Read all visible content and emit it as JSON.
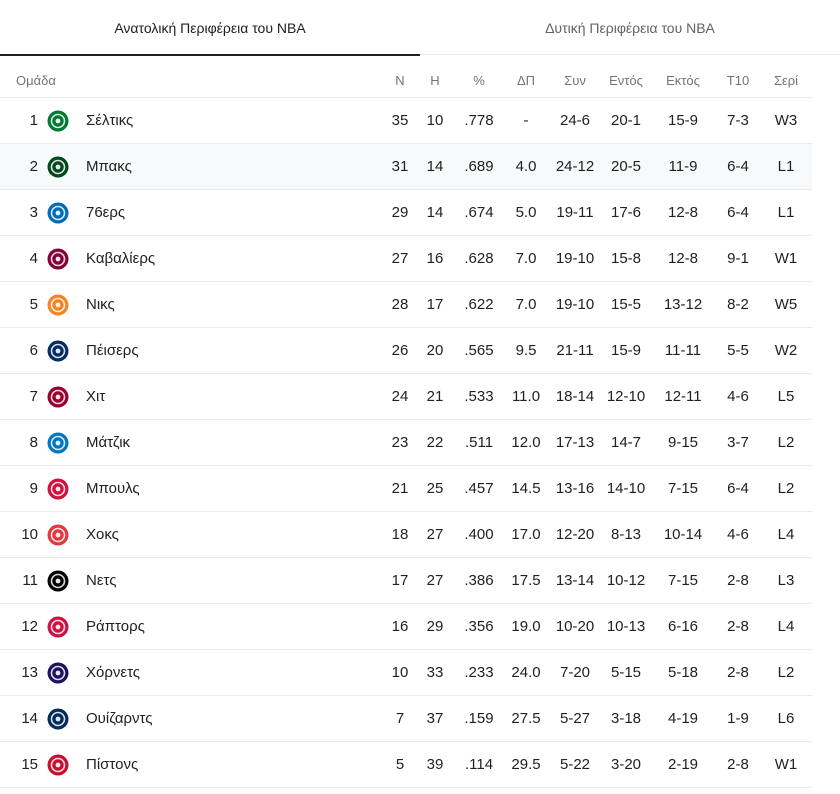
{
  "tabs": [
    {
      "label": "Ανατολική Περιφέρεια του NBA"
    },
    {
      "label": "Δυτική Περιφέρεια του NBA"
    }
  ],
  "columns": {
    "team": "Ομάδα",
    "n": "Ν",
    "h": "Η",
    "pct": "%",
    "dp": "ΔΠ",
    "syn": "Συν",
    "entos": "Εντός",
    "ektos": "Εκτός",
    "t10": "Τ10",
    "seri": "Σερί"
  },
  "teams": [
    {
      "rank": "1",
      "name": "Σέλτικς",
      "logo": "celtics-logo-icon",
      "color": "#007a33",
      "n": "35",
      "h": "10",
      "pct": ".778",
      "dp": "-",
      "syn": "24-6",
      "entos": "20-1",
      "ektos": "15-9",
      "t10": "7-3",
      "seri": "W3"
    },
    {
      "rank": "2",
      "name": "Μπακς",
      "logo": "bucks-logo-icon",
      "color": "#00471b",
      "n": "31",
      "h": "14",
      "pct": ".689",
      "dp": "4.0",
      "syn": "24-12",
      "entos": "20-5",
      "ektos": "11-9",
      "t10": "6-4",
      "seri": "L1"
    },
    {
      "rank": "3",
      "name": "76ερς",
      "logo": "76ers-logo-icon",
      "color": "#006bb6",
      "n": "29",
      "h": "14",
      "pct": ".674",
      "dp": "5.0",
      "syn": "19-11",
      "entos": "17-6",
      "ektos": "12-8",
      "t10": "6-4",
      "seri": "L1"
    },
    {
      "rank": "4",
      "name": "Καβαλίερς",
      "logo": "cavaliers-logo-icon",
      "color": "#860038",
      "n": "27",
      "h": "16",
      "pct": ".628",
      "dp": "7.0",
      "syn": "19-10",
      "entos": "15-8",
      "ektos": "12-8",
      "t10": "9-1",
      "seri": "W1"
    },
    {
      "rank": "5",
      "name": "Νικς",
      "logo": "knicks-logo-icon",
      "color": "#f58426",
      "n": "28",
      "h": "17",
      "pct": ".622",
      "dp": "7.0",
      "syn": "19-10",
      "entos": "15-5",
      "ektos": "13-12",
      "t10": "8-2",
      "seri": "W5"
    },
    {
      "rank": "6",
      "name": "Πέισερς",
      "logo": "pacers-logo-icon",
      "color": "#002d62",
      "n": "26",
      "h": "20",
      "pct": ".565",
      "dp": "9.5",
      "syn": "21-11",
      "entos": "15-9",
      "ektos": "11-11",
      "t10": "5-5",
      "seri": "W2"
    },
    {
      "rank": "7",
      "name": "Χιτ",
      "logo": "heat-logo-icon",
      "color": "#98002e",
      "n": "24",
      "h": "21",
      "pct": ".533",
      "dp": "11.0",
      "syn": "18-14",
      "entos": "12-10",
      "ektos": "12-11",
      "t10": "4-6",
      "seri": "L5"
    },
    {
      "rank": "8",
      "name": "Μάτζικ",
      "logo": "magic-logo-icon",
      "color": "#0077c0",
      "n": "23",
      "h": "22",
      "pct": ".511",
      "dp": "12.0",
      "syn": "17-13",
      "entos": "14-7",
      "ektos": "9-15",
      "t10": "3-7",
      "seri": "L2"
    },
    {
      "rank": "9",
      "name": "Μπουλς",
      "logo": "bulls-logo-icon",
      "color": "#ce1141",
      "n": "21",
      "h": "25",
      "pct": ".457",
      "dp": "14.5",
      "syn": "13-16",
      "entos": "14-10",
      "ektos": "7-15",
      "t10": "6-4",
      "seri": "L2"
    },
    {
      "rank": "10",
      "name": "Χοκς",
      "logo": "hawks-logo-icon",
      "color": "#e03a3e",
      "n": "18",
      "h": "27",
      "pct": ".400",
      "dp": "17.0",
      "syn": "12-20",
      "entos": "8-13",
      "ektos": "10-14",
      "t10": "4-6",
      "seri": "L4"
    },
    {
      "rank": "11",
      "name": "Νετς",
      "logo": "nets-logo-icon",
      "color": "#000000",
      "n": "17",
      "h": "27",
      "pct": ".386",
      "dp": "17.5",
      "syn": "13-14",
      "entos": "10-12",
      "ektos": "7-15",
      "t10": "2-8",
      "seri": "L3"
    },
    {
      "rank": "12",
      "name": "Ράπτορς",
      "logo": "raptors-logo-icon",
      "color": "#ce1141",
      "n": "16",
      "h": "29",
      "pct": ".356",
      "dp": "19.0",
      "syn": "10-20",
      "entos": "10-13",
      "ektos": "6-16",
      "t10": "2-8",
      "seri": "L4"
    },
    {
      "rank": "13",
      "name": "Χόρνετς",
      "logo": "hornets-logo-icon",
      "color": "#1d1160",
      "n": "10",
      "h": "33",
      "pct": ".233",
      "dp": "24.0",
      "syn": "7-20",
      "entos": "5-15",
      "ektos": "5-18",
      "t10": "2-8",
      "seri": "L2"
    },
    {
      "rank": "14",
      "name": "Ουίζαρντς",
      "logo": "wizards-logo-icon",
      "color": "#002b5c",
      "n": "7",
      "h": "37",
      "pct": ".159",
      "dp": "27.5",
      "syn": "5-27",
      "entos": "3-18",
      "ektos": "4-19",
      "t10": "1-9",
      "seri": "L6"
    },
    {
      "rank": "15",
      "name": "Πίστονς",
      "logo": "pistons-logo-icon",
      "color": "#c8102e",
      "n": "5",
      "h": "39",
      "pct": ".114",
      "dp": "29.5",
      "syn": "5-22",
      "entos": "3-20",
      "ektos": "2-19",
      "t10": "2-8",
      "seri": "W1"
    }
  ]
}
